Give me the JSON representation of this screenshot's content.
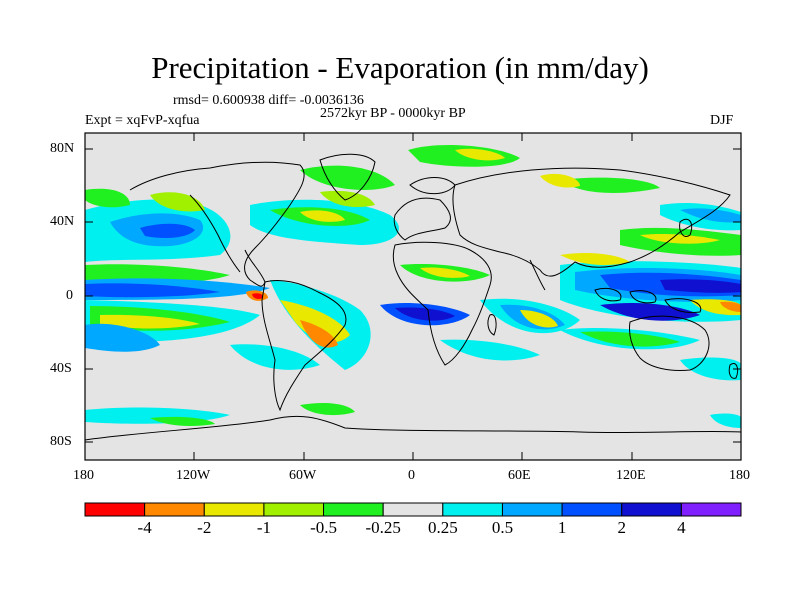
{
  "title": "Precipitation - Evaporation (in mm/day)",
  "stats": "rmsd= 0.600938 diff= -0.0036136",
  "period": "2572kyr BP - 0000kyr BP",
  "experiment": "Expt = xqFvP-xqfua",
  "season": "DJF",
  "lat_labels": [
    "80N",
    "40N",
    "0",
    "40S",
    "80S"
  ],
  "lon_labels": [
    "180",
    "120W",
    "60W",
    "0",
    "60E",
    "120E",
    "180"
  ],
  "colorbar": {
    "labels": [
      "-4",
      "-2",
      "-1",
      "-0.5",
      "-0.25",
      "0.25",
      "0.5",
      "1",
      "2",
      "4"
    ],
    "colors": [
      "#ff0000",
      "#ff8800",
      "#e8e800",
      "#a0f000",
      "#20f020",
      "#e4e4e4",
      "#00f0f0",
      "#00a8ff",
      "#0050ff",
      "#1010d0",
      "#8020ff"
    ]
  }
}
